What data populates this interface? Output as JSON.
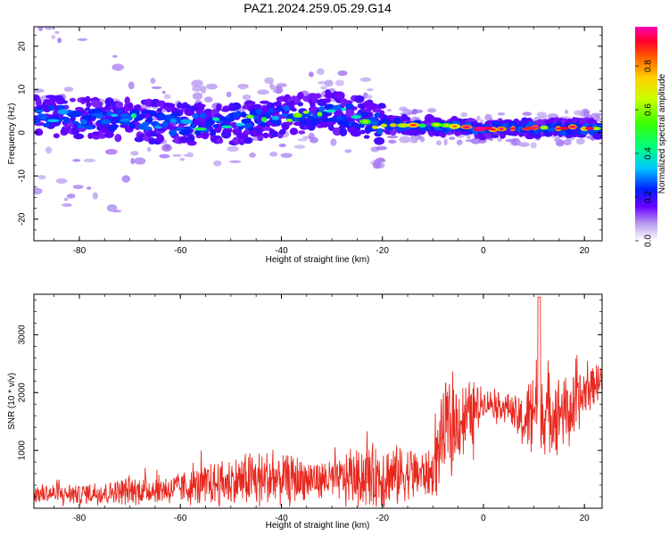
{
  "title": "PAZ1.2024.259.05.29.G14",
  "colors": {
    "snr_line": "#e8281e",
    "axis": "#000000",
    "background": "#ffffff"
  },
  "chart_data": [
    {
      "type": "heatmap",
      "xlabel": "Height of straight line (km)",
      "ylabel": "Frequency (Hz)",
      "xlim": [
        -89,
        23.5
      ],
      "ylim": [
        -25,
        24.5
      ],
      "xticks": [
        -80,
        -60,
        -40,
        -20,
        0,
        20
      ],
      "yticks": [
        20,
        10,
        0,
        -10,
        -20
      ],
      "colorbar": {
        "label": "Normalized spectral amplitude",
        "range": [
          0.0,
          0.98
        ],
        "ticks": [
          "0.0",
          "0.2",
          "0.4",
          "0.6",
          "0.8"
        ],
        "tick_values": [
          0.0,
          0.2,
          0.4,
          0.6,
          0.8
        ],
        "colormap": "gist_ncar-like (white, violet, blue, cyan, green, yellow, orange, red, magenta)"
      },
      "ridge": {
        "description": "dominant frequency band vs height",
        "x": [
          -88,
          -80,
          -70,
          -60,
          -50,
          -40,
          -30,
          -20,
          -10,
          0,
          10,
          20,
          23
        ],
        "frequency_hz": [
          4,
          3.5,
          3,
          2,
          2,
          3.5,
          5,
          2,
          1.5,
          1,
          1,
          1,
          1
        ],
        "peak_amplitude": [
          0.3,
          0.4,
          0.45,
          0.45,
          0.5,
          0.55,
          0.55,
          0.6,
          0.8,
          0.98,
          0.9,
          0.95,
          0.95
        ]
      }
    },
    {
      "type": "line",
      "xlabel": "Height of straight line (km)",
      "ylabel": "SNR (10 * v/v)",
      "xlim": [
        -89,
        23.5
      ],
      "ylim": [
        0,
        3700
      ],
      "xticks": [
        -80,
        -60,
        -40,
        -20,
        0,
        20
      ],
      "yticks": [
        1000,
        2000,
        3000
      ],
      "series": [
        {
          "envelope_x": [
            -89,
            -80,
            -70,
            -60,
            -50,
            -45,
            -40,
            -30,
            -25,
            -20,
            -15,
            -10,
            -9,
            -8,
            -5,
            -2,
            0,
            5,
            8,
            10,
            11,
            12,
            15,
            18,
            20,
            23
          ],
          "baseline": [
            250,
            250,
            300,
            350,
            450,
            500,
            500,
            500,
            550,
            550,
            600,
            600,
            1000,
            1300,
            1500,
            1650,
            1850,
            1750,
            1450,
            1800,
            1900,
            1600,
            1700,
            1700,
            2000,
            2250
          ],
          "amplitude": [
            180,
            200,
            250,
            300,
            450,
            550,
            500,
            350,
            500,
            700,
            500,
            400,
            700,
            900,
            700,
            600,
            250,
            250,
            500,
            900,
            1000,
            800,
            700,
            600,
            500,
            300
          ]
        }
      ]
    }
  ]
}
